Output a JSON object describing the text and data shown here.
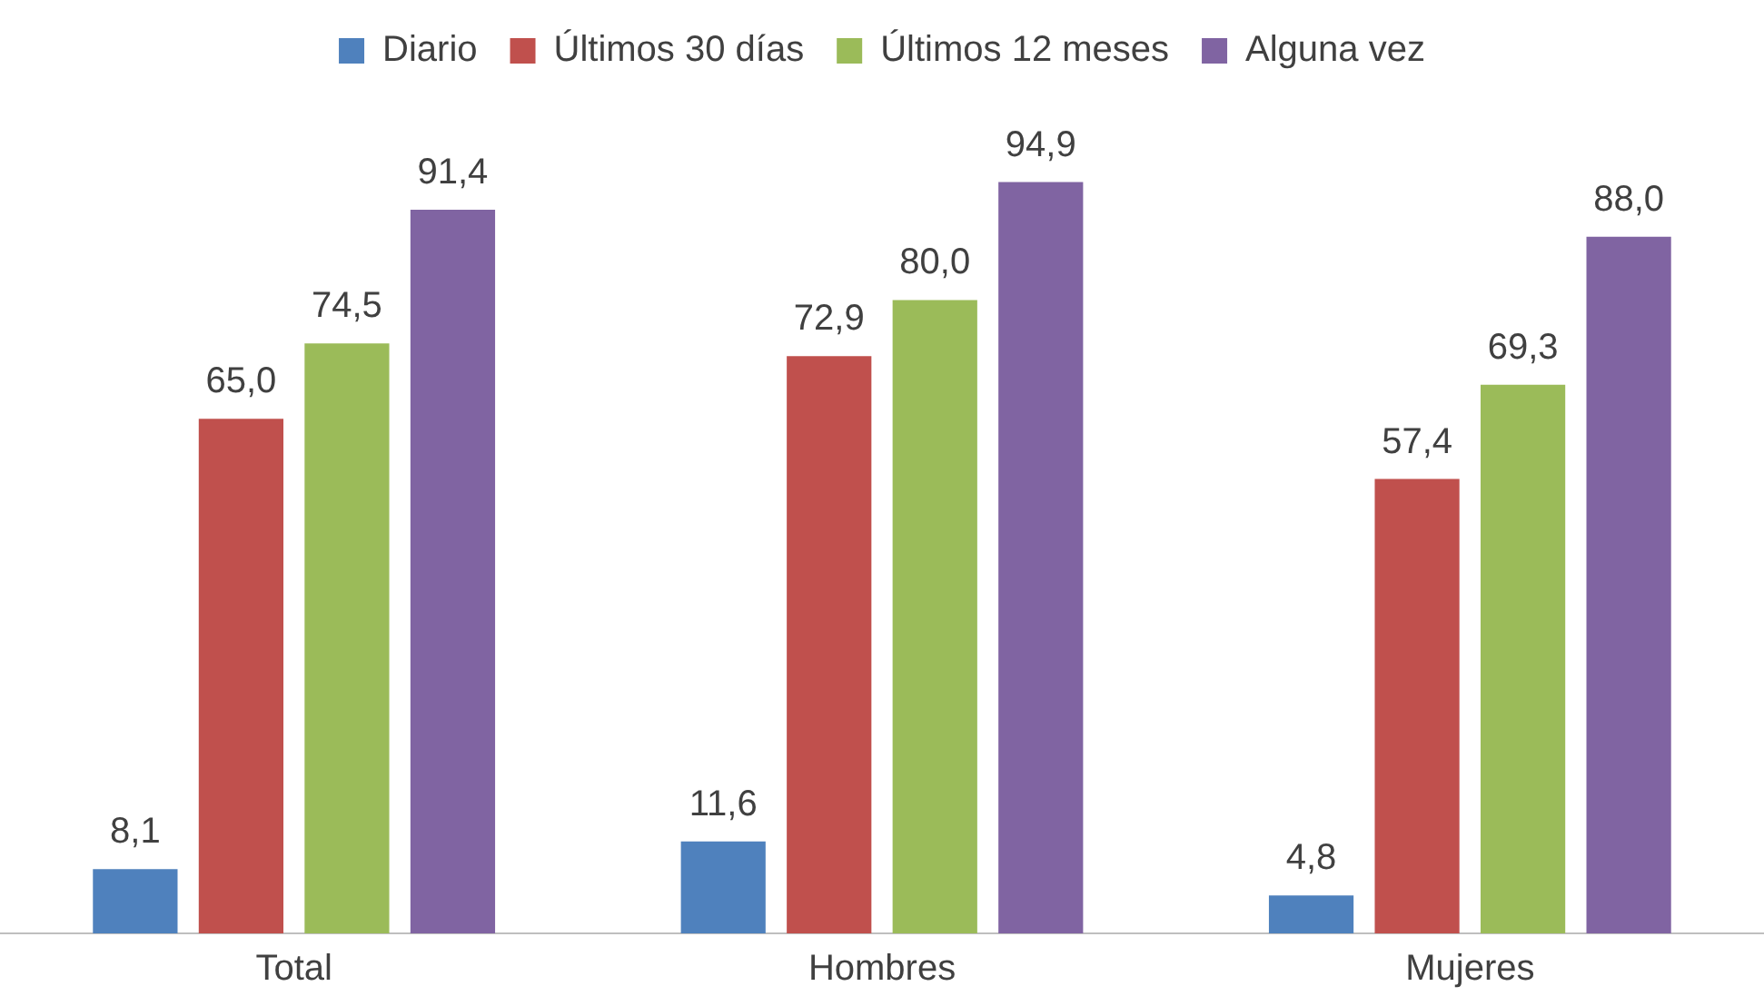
{
  "chart_data": {
    "type": "bar",
    "categories": [
      "Total",
      "Hombres",
      "Mujeres"
    ],
    "series": [
      {
        "name": "Diario",
        "color": "#4f81bd",
        "values": [
          8.1,
          11.6,
          4.8
        ],
        "value_labels": [
          "8,1",
          "11,6",
          "4,8"
        ]
      },
      {
        "name": "Últimos 30 días",
        "color": "#c0504d",
        "values": [
          65.0,
          72.9,
          57.4
        ],
        "value_labels": [
          "65,0",
          "72,9",
          "57,4"
        ]
      },
      {
        "name": "Últimos 12 meses",
        "color": "#9bbb59",
        "values": [
          74.5,
          80.0,
          69.3
        ],
        "value_labels": [
          "74,5",
          "80,0",
          "69,3"
        ]
      },
      {
        "name": "Alguna vez",
        "color": "#8064a2",
        "values": [
          91.4,
          94.9,
          88.0
        ],
        "value_labels": [
          "91,4",
          "94,9",
          "88,0"
        ]
      }
    ],
    "grid": false,
    "legend": "top",
    "tick_labels": "x"
  }
}
